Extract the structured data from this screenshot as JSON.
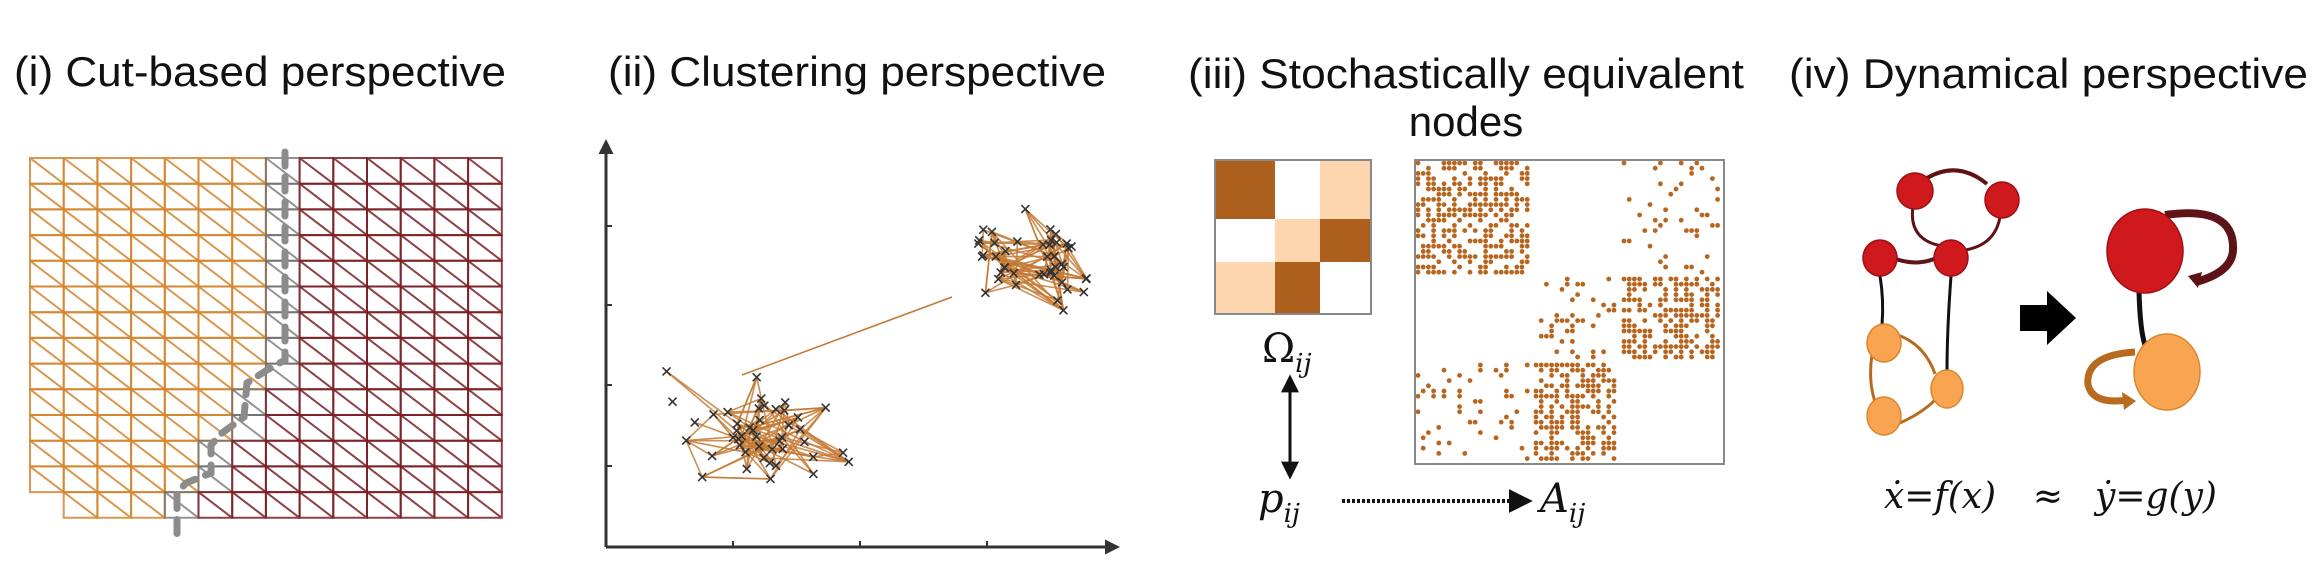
{
  "panels": {
    "cut": {
      "title": "(i) Cut-based perspective"
    },
    "clustering": {
      "title": "(ii) Clustering perspective"
    },
    "stochastic": {
      "title_line1": "(iii) Stochastically equivalent",
      "title_line2": "nodes",
      "omega_label": "Ω",
      "omega_sub": "ij",
      "p_label": "p",
      "p_sub": "ij",
      "a_label": "A",
      "a_sub": "ij",
      "omega_levels": [
        [
          2,
          0,
          1
        ],
        [
          0,
          1,
          2
        ],
        [
          1,
          2,
          0
        ]
      ],
      "block_density": [
        [
          0.55,
          0,
          0.1
        ],
        [
          0,
          0.14,
          0.5
        ],
        [
          0.12,
          0.55,
          0
        ]
      ]
    },
    "dynamical": {
      "title": "(iv) Dynamical perspective",
      "equation_left": "ẋ=f(x)",
      "approx": "≈",
      "equation_right": "ẏ=g(y)"
    }
  },
  "colors": {
    "orange_mesh": "#d4852e",
    "red_mesh": "#7a1f24",
    "cut_line": "#8c8c8c",
    "edge": "#c47a35",
    "omega_dark": "#ad5f1e",
    "omega_light": "#fdd5ae",
    "adjacency_dot": "#b8661f",
    "node_red": "#d0191d",
    "node_orange": "#f9a451",
    "loop_red": "#5e1316",
    "loop_orange": "#b86a1e"
  }
}
